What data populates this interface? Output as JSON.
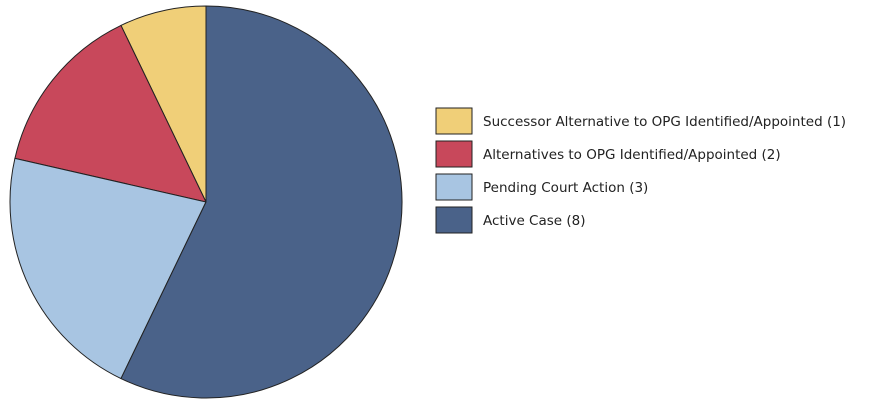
{
  "chart_data": {
    "type": "pie",
    "categories": [
      "Successor Alternative to OPG Identified/Appointed (1)",
      "Alternatives to OPG Identified/Appointed (2)",
      "Pending Court Action (3)",
      "Active Case (8)"
    ],
    "values": [
      1,
      2,
      3,
      8
    ],
    "colors": [
      "#f0cf78",
      "#c8485b",
      "#a8c5e2",
      "#4a6289"
    ]
  }
}
